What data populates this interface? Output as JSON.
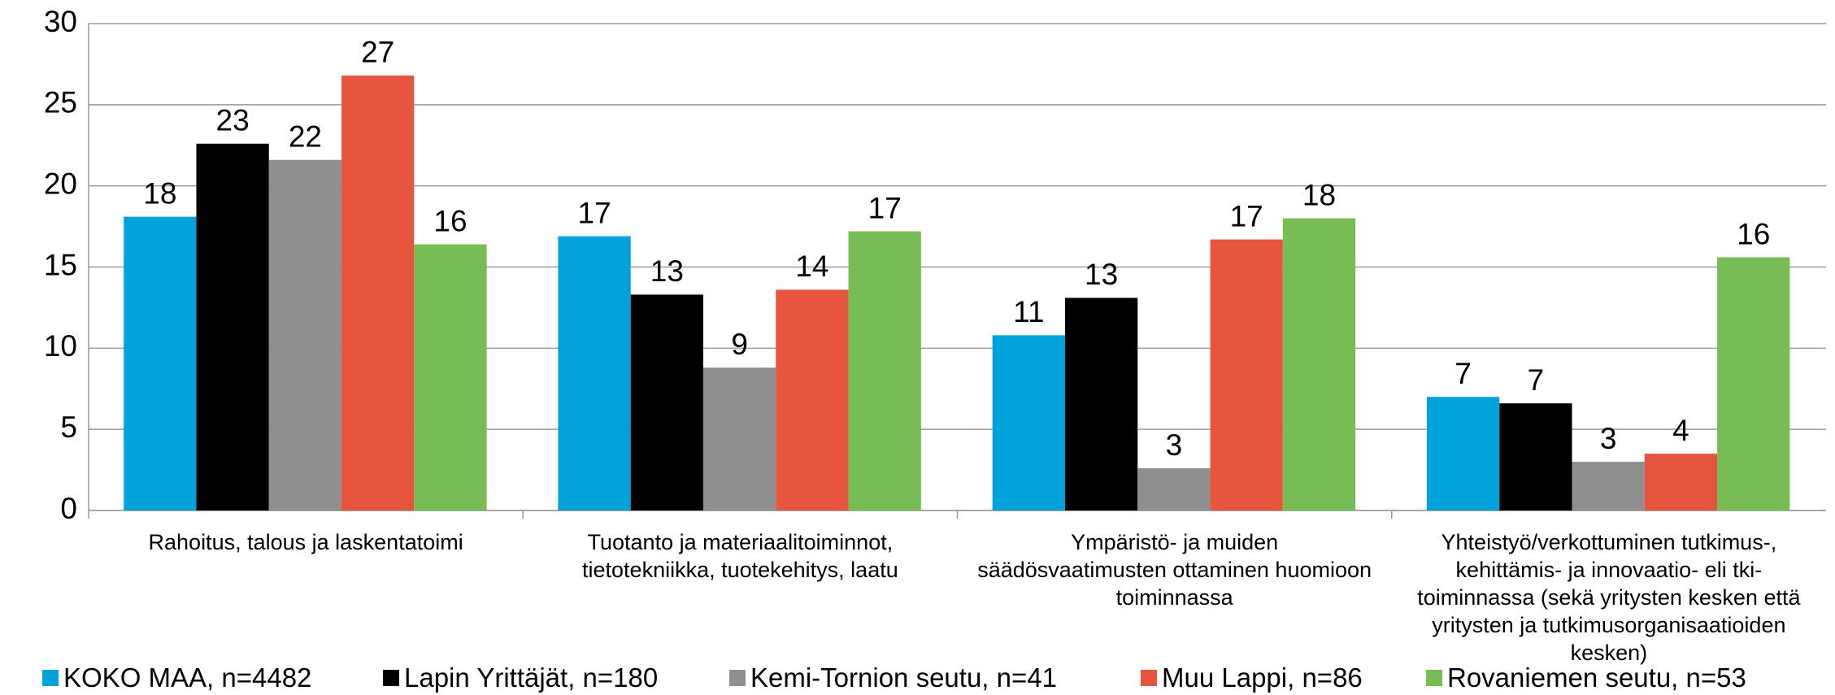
{
  "chart_data": {
    "type": "bar",
    "categories": [
      "Rahoitus, talous ja laskentatoimi",
      "Tuotanto ja materiaalitoiminnot, tietotekniikka, tuotekehitys, laatu",
      "Ympäristö- ja muiden säädösvaatimusten ottaminen huomioon toiminnassa",
      "Yhteistyö/verkottuminen tutkimus-, kehittämis- ja innovaatio- eli tki-toiminnassa (sekä yritysten kesken että yritysten ja tutkimusorganisaatioiden kesken)"
    ],
    "series": [
      {
        "name": "KOKO MAA, n=4482",
        "color": "#00a2db",
        "values": [
          18.1,
          16.9,
          10.8,
          7.0
        ],
        "value_labels": [
          "18",
          "17",
          "11",
          "7"
        ]
      },
      {
        "name": "Lapin Yrittäjät, n=180",
        "color": "#000000",
        "values": [
          22.6,
          13.3,
          13.1,
          6.6
        ],
        "value_labels": [
          "23",
          "13",
          "13",
          "7"
        ]
      },
      {
        "name": "Kemi-Tornion seutu, n=41",
        "color": "#8f8f8f",
        "values": [
          21.6,
          8.8,
          2.6,
          3.0
        ],
        "value_labels": [
          "22",
          "9",
          "3",
          "3"
        ]
      },
      {
        "name": "Muu Lappi, n=86",
        "color": "#e8553e",
        "values": [
          26.8,
          13.6,
          16.7,
          3.5
        ],
        "value_labels": [
          "27",
          "14",
          "17",
          "4"
        ]
      },
      {
        "name": "Rovaniemen seutu, n=53",
        "color": "#77bc55",
        "values": [
          16.4,
          17.2,
          18.0,
          15.6
        ],
        "value_labels": [
          "16",
          "17",
          "18",
          "16"
        ]
      }
    ],
    "ylim": [
      0,
      30
    ],
    "yticks": [
      0,
      5,
      10,
      15,
      20,
      25,
      30
    ],
    "grid": true,
    "legend": "bottom"
  }
}
